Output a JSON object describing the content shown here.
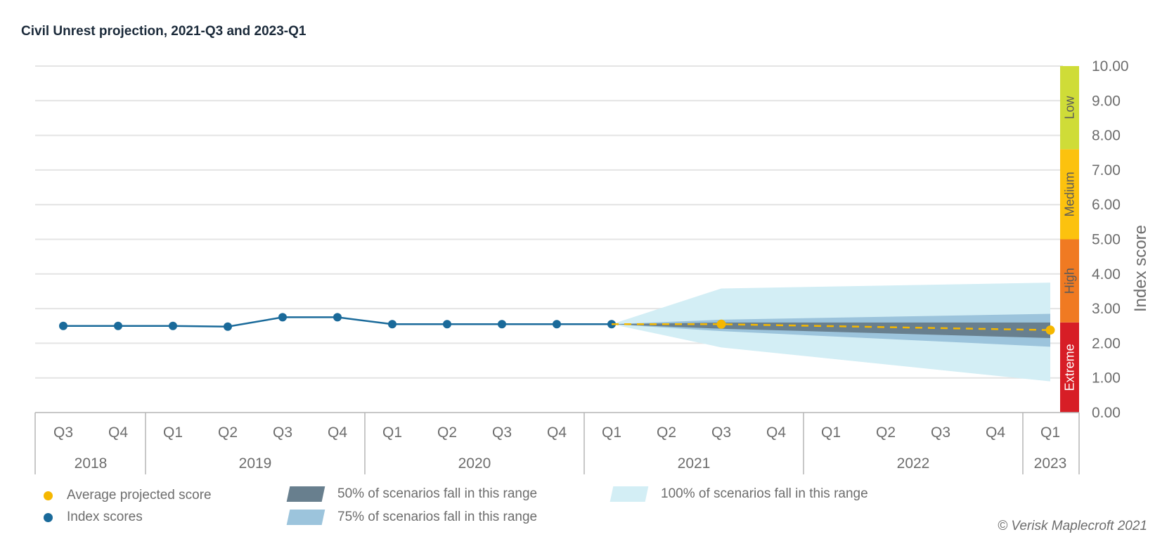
{
  "chart_data": {
    "type": "line",
    "title": "Civil Unrest projection, 2021-Q3 and 2023-Q1",
    "ylabel": "Index score",
    "ylim": [
      0,
      10
    ],
    "y_ticks": [
      "0.00",
      "1.00",
      "2.00",
      "3.00",
      "4.00",
      "5.00",
      "6.00",
      "7.00",
      "8.00",
      "9.00",
      "10.00"
    ],
    "quarters": [
      "Q3",
      "Q4",
      "Q1",
      "Q2",
      "Q3",
      "Q4",
      "Q1",
      "Q2",
      "Q3",
      "Q4",
      "Q1",
      "Q2",
      "Q3",
      "Q4",
      "Q1",
      "Q2",
      "Q3",
      "Q4",
      "Q1"
    ],
    "years": [
      {
        "label": "2018",
        "count": 2
      },
      {
        "label": "2019",
        "count": 4
      },
      {
        "label": "2020",
        "count": 4
      },
      {
        "label": "2021",
        "count": 4
      },
      {
        "label": "2022",
        "count": 4
      },
      {
        "label": "2023",
        "count": 1
      }
    ],
    "index_scores": {
      "name": "Index scores",
      "color": "#1a6a9a",
      "values": [
        2.5,
        2.5,
        2.5,
        2.48,
        2.75,
        2.75,
        2.55,
        2.55,
        2.55,
        2.55,
        2.55
      ]
    },
    "projection": {
      "name": "Average projected score",
      "color": "#f5b700",
      "start_index": 10,
      "anchors": [
        {
          "i": 10,
          "v": 2.55
        },
        {
          "i": 12,
          "v": 2.55
        },
        {
          "i": 18,
          "v": 2.38
        }
      ],
      "markers": [
        {
          "i": 12,
          "v": 2.55
        },
        {
          "i": 18,
          "v": 2.38
        }
      ]
    },
    "ranges": [
      {
        "name": "100% of scenarios fall in this range",
        "color": "#d3eef5",
        "points": [
          {
            "i": 10,
            "low": 2.55,
            "high": 2.55
          },
          {
            "i": 12,
            "low": 1.88,
            "high": 3.58
          },
          {
            "i": 18,
            "low": 0.9,
            "high": 3.75
          }
        ]
      },
      {
        "name": "75% of scenarios fall in this range",
        "color": "#9cc4dc",
        "points": [
          {
            "i": 10,
            "low": 2.55,
            "high": 2.55
          },
          {
            "i": 12,
            "low": 2.35,
            "high": 2.68
          },
          {
            "i": 18,
            "low": 1.9,
            "high": 2.85
          }
        ]
      },
      {
        "name": "50% of scenarios fall in this range",
        "color": "#687f8e",
        "points": [
          {
            "i": 10,
            "low": 2.55,
            "high": 2.55
          },
          {
            "i": 12,
            "low": 2.42,
            "high": 2.6
          },
          {
            "i": 18,
            "low": 2.15,
            "high": 2.6
          }
        ]
      }
    ],
    "risk_bands": [
      {
        "label": "Extreme",
        "from": 0,
        "to": 2.6,
        "color": "#d71e26"
      },
      {
        "label": "High",
        "from": 2.6,
        "to": 5.0,
        "color": "#f07a22"
      },
      {
        "label": "Medium",
        "from": 5.0,
        "to": 7.6,
        "color": "#fcc20e"
      },
      {
        "label": "Low",
        "from": 7.6,
        "to": 10.0,
        "color": "#cfdc38"
      }
    ],
    "legend": [
      {
        "label": "Average projected score",
        "kind": "dot",
        "color": "#f5b700"
      },
      {
        "label": "Index scores",
        "kind": "dot",
        "color": "#1a6a9a"
      },
      {
        "label": "50% of scenarios fall in this range",
        "kind": "swatch",
        "color": "#687f8e"
      },
      {
        "label": "75% of scenarios fall in this range",
        "kind": "swatch",
        "color": "#9cc4dc"
      },
      {
        "label": "100% of scenarios fall in this range",
        "kind": "swatch",
        "color": "#d3eef5"
      }
    ]
  },
  "copyright": "© Verisk Maplecroft 2021"
}
